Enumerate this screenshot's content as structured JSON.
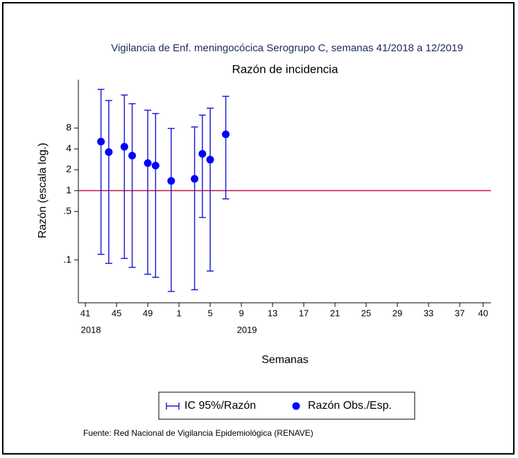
{
  "chart_data": {
    "type": "errorbar",
    "title": "Vigilancia de Enf. meningocócica Serogrupo C, semanas 41/2018 a 12/2019",
    "subtitle": "Razón de incidencia",
    "y_label": "Razón (escala log.)",
    "x_label": "Semanas",
    "note": "Fuente: Red Nacional de Vigilancia Epidemiológica (RENAVE)",
    "x": [
      2,
      3,
      5,
      6,
      8,
      9,
      11,
      14,
      15,
      16,
      18
    ],
    "series": [
      {
        "name": "IC 95%/Razón",
        "color": "#1f1fd0",
        "lower": [
          0.12,
          0.089,
          0.105,
          0.078,
          0.062,
          0.056,
          0.035,
          0.037,
          0.41,
          0.069,
          0.76
        ],
        "upper": [
          29,
          20,
          24,
          18,
          14.5,
          13,
          7.9,
          8.3,
          12.3,
          15.5,
          23
        ]
      },
      {
        "name": "Razón Obs./Esp.",
        "color": "#0000ff",
        "values": [
          5.1,
          3.6,
          4.3,
          3.2,
          2.5,
          2.3,
          1.38,
          1.48,
          3.4,
          2.8,
          6.5
        ]
      }
    ],
    "reference_line": {
      "value": 1,
      "color": "#c8103c"
    },
    "log_y": true,
    "ylim": [
      0.024,
      40
    ],
    "yticks": [
      {
        "value": 0.1,
        "label": ".1"
      },
      {
        "value": 0.5,
        "label": ".5"
      },
      1,
      2,
      4,
      8
    ],
    "xlim": [
      -0.9,
      52
    ],
    "xticks": [
      {
        "value": 0,
        "label": "41"
      },
      {
        "value": 4,
        "label": "45"
      },
      {
        "value": 8,
        "label": "49"
      },
      {
        "value": 12,
        "label": "1"
      },
      {
        "value": 16,
        "label": "5"
      },
      {
        "value": 20,
        "label": "9"
      },
      {
        "value": 24,
        "label": "13"
      },
      {
        "value": 28,
        "label": "17"
      },
      {
        "value": 32,
        "label": "21"
      },
      {
        "value": 36,
        "label": "25"
      },
      {
        "value": 40,
        "label": "29"
      },
      {
        "value": 44,
        "label": "33"
      },
      {
        "value": 48,
        "label": "37"
      },
      {
        "value": 51,
        "label": "40"
      }
    ],
    "x_year_labels": [
      {
        "value": 0,
        "label": "2018"
      },
      {
        "value": 20,
        "label": "2019"
      }
    ]
  }
}
